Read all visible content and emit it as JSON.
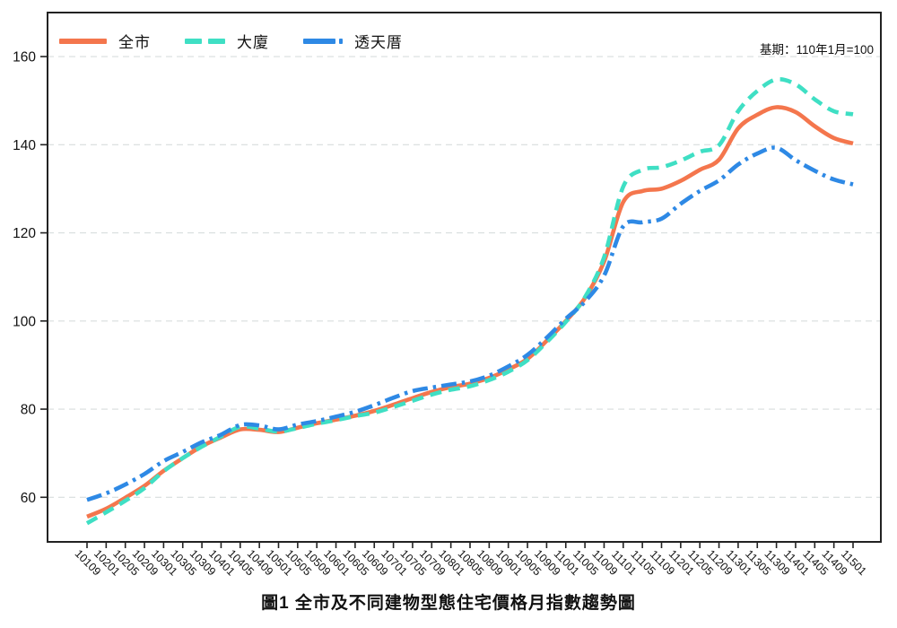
{
  "figure": {
    "title": "圖1 全市及不同建物型態住宅價格月指數趨勢圖",
    "base_note": "基期：110年1月=100"
  },
  "legend": [
    {
      "label": "全市",
      "color": "#F4764D",
      "style": "solid"
    },
    {
      "label": "大廈",
      "color": "#3FDFC4",
      "style": "dashed"
    },
    {
      "label": "透天厝",
      "color": "#2E89E5",
      "style": "dashdot"
    }
  ],
  "chart_data": {
    "type": "line",
    "title": "圖1 全市及不同建物型態住宅價格月指數趨勢圖",
    "annotation": "基期：110年1月=100",
    "xlabel": "",
    "ylabel": "",
    "ylim": [
      50,
      170
    ],
    "yticks": [
      60,
      80,
      100,
      120,
      140,
      160
    ],
    "grid": "horizontal-dashed",
    "legend_position": "top-left-inside",
    "categories": [
      "10109",
      "10201",
      "10205",
      "10209",
      "10301",
      "10305",
      "10309",
      "10401",
      "10405",
      "10409",
      "10501",
      "10505",
      "10509",
      "10601",
      "10605",
      "10609",
      "10701",
      "10705",
      "10709",
      "10801",
      "10805",
      "10809",
      "10901",
      "10905",
      "10909",
      "11001",
      "11005",
      "11009",
      "11101",
      "11105",
      "11109",
      "11201",
      "11205",
      "11209",
      "11301",
      "11305",
      "11309",
      "11401",
      "11405",
      "11409",
      "11501"
    ],
    "series": [
      {
        "name": "全市",
        "id": "citywide",
        "color": "#F4764D",
        "dash": "solid",
        "values": [
          55.6,
          57.4,
          59.9,
          62.6,
          66.0,
          68.9,
          71.6,
          73.6,
          75.4,
          75.3,
          74.8,
          75.8,
          76.8,
          77.6,
          78.5,
          79.6,
          81.0,
          82.5,
          83.9,
          85.0,
          85.8,
          87.1,
          89.0,
          91.4,
          95.5,
          100.0,
          105.2,
          113.5,
          127.0,
          129.5,
          130.0,
          131.8,
          134.3,
          136.6,
          143.7,
          146.8,
          148.5,
          147.4,
          144.2,
          141.5,
          140.3
        ]
      },
      {
        "name": "大廈",
        "id": "apartment",
        "color": "#3FDFC4",
        "dash": "dashed",
        "values": [
          54.1,
          56.6,
          59.2,
          62.1,
          65.9,
          68.9,
          71.5,
          73.8,
          76.0,
          75.6,
          74.9,
          75.7,
          76.7,
          77.5,
          78.4,
          79.2,
          80.5,
          81.9,
          83.3,
          84.4,
          85.2,
          86.6,
          88.5,
          91.1,
          95.2,
          99.8,
          105.4,
          114.5,
          130.5,
          134.3,
          134.9,
          136.4,
          138.4,
          139.9,
          147.6,
          152.2,
          154.8,
          153.7,
          150.3,
          147.6,
          146.9
        ]
      },
      {
        "name": "透天厝",
        "id": "townhouse",
        "color": "#2E89E5",
        "dash": "dashdot",
        "values": [
          59.4,
          60.9,
          62.9,
          65.3,
          68.2,
          70.3,
          72.5,
          74.2,
          76.4,
          76.3,
          75.4,
          76.5,
          77.3,
          78.3,
          79.4,
          80.9,
          82.6,
          84.1,
          84.9,
          85.6,
          86.3,
          87.6,
          89.7,
          92.3,
          96.2,
          100.5,
          104.4,
          110.3,
          121.5,
          122.4,
          123.2,
          126.6,
          129.5,
          131.9,
          135.5,
          138.0,
          139.3,
          136.5,
          134.1,
          132.1,
          131.0
        ]
      }
    ]
  },
  "colors": {
    "grid": "#d8dddd",
    "axis": "#222222",
    "text": "#111111"
  }
}
